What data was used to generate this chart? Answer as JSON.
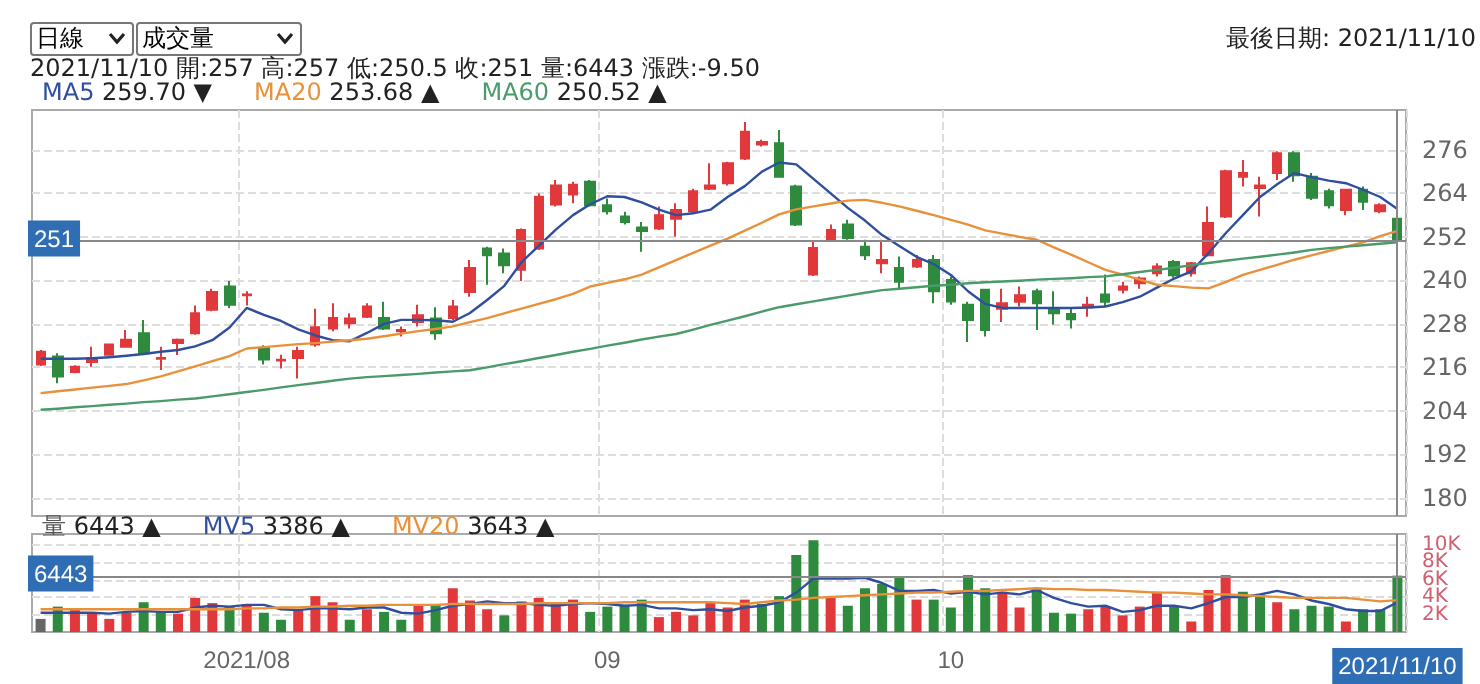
{
  "chart_data": [
    {
      "type": "candlestick",
      "annotations": [
        "日線",
        "成交量",
        "最後日期: 2021/11/10",
        "2021/11/10 開:257 高:257 低:250.5 收:251 量:6443 漲跌:-9.50"
      ],
      "categories": [
        null,
        null,
        null,
        null,
        null,
        null,
        null,
        null,
        null,
        null,
        null,
        null,
        "2021/08",
        null,
        null,
        null,
        null,
        null,
        null,
        null,
        null,
        null,
        null,
        null,
        null,
        null,
        null,
        null,
        null,
        null,
        null,
        null,
        null,
        "09",
        null,
        null,
        null,
        null,
        null,
        null,
        null,
        null,
        null,
        null,
        null,
        null,
        null,
        null,
        null,
        null,
        null,
        null,
        null,
        "10",
        null,
        null,
        null,
        null,
        null,
        null,
        null,
        null,
        null,
        null,
        null,
        null,
        null,
        null,
        null,
        null,
        null,
        null,
        null,
        null,
        null,
        null,
        null,
        null,
        null,
        "2021/11/10"
      ],
      "ohlc": [
        [
          216.8,
          220.8,
          216.4,
          220.3
        ],
        [
          219.0,
          219.9,
          211.6,
          213.5
        ],
        [
          214.7,
          216.6,
          214.4,
          216.2
        ],
        [
          217.5,
          221.7,
          216.2,
          218.6
        ],
        [
          219.5,
          222.6,
          219.4,
          222.3
        ],
        [
          221.7,
          226.3,
          221.6,
          223.6
        ],
        [
          225.4,
          229.1,
          219.4,
          219.9
        ],
        [
          218.4,
          221.7,
          215.3,
          218.6
        ],
        [
          222.7,
          224.0,
          219.4,
          223.6
        ],
        [
          225.4,
          233.1,
          225.0,
          230.9
        ],
        [
          231.9,
          237.7,
          231.5,
          236.8
        ],
        [
          238.3,
          239.8,
          232.4,
          233.3
        ],
        [
          235.9,
          237.0,
          233.1,
          236.1
        ],
        [
          221.4,
          222.1,
          216.8,
          218.2
        ],
        [
          217.9,
          219.5,
          215.7,
          218.1
        ],
        [
          218.6,
          221.7,
          212.9,
          220.5
        ],
        [
          222.3,
          232.2,
          221.7,
          227.1
        ],
        [
          226.7,
          233.7,
          226.0,
          229.6
        ],
        [
          228.2,
          230.9,
          226.7,
          229.5
        ],
        [
          230.0,
          233.7,
          229.6,
          232.8
        ],
        [
          229.6,
          234.1,
          226.3,
          226.7
        ],
        [
          226.0,
          227.3,
          224.5,
          226.3
        ],
        [
          228.5,
          233.3,
          227.3,
          230.4
        ],
        [
          229.5,
          232.6,
          223.6,
          225.4
        ],
        [
          229.6,
          234.6,
          229.1,
          232.8
        ],
        [
          236.8,
          245.6,
          235.5,
          243.4
        ],
        [
          248.8,
          249.3,
          238.8,
          246.9
        ],
        [
          247.4,
          248.8,
          242.0,
          244.2
        ],
        [
          242.9,
          254.3,
          239.8,
          253.9
        ],
        [
          248.8,
          264.0,
          248.4,
          263.1
        ],
        [
          260.9,
          267.7,
          260.4,
          266.2
        ],
        [
          263.7,
          267.2,
          261.3,
          266.4
        ],
        [
          267.2,
          267.7,
          260.4,
          260.7
        ],
        [
          260.7,
          262.6,
          258.2,
          259.1
        ],
        [
          257.6,
          258.9,
          255.4,
          256.1
        ],
        [
          254.6,
          256.1,
          247.9,
          253.6
        ],
        [
          254.3,
          260.4,
          253.9,
          258.0
        ],
        [
          257.0,
          261.3,
          252.1,
          259.4
        ],
        [
          259.1,
          265.3,
          258.5,
          264.6
        ],
        [
          265.3,
          272.3,
          264.9,
          266.2
        ],
        [
          266.8,
          272.7,
          266.2,
          272.3
        ],
        [
          273.6,
          283.7,
          273.2,
          281.0
        ],
        [
          277.5,
          278.8,
          276.9,
          278.2
        ],
        [
          277.8,
          281.5,
          268.3,
          268.6
        ],
        [
          265.9,
          266.4,
          255.0,
          255.4
        ],
        [
          241.6,
          250.6,
          241.2,
          248.9
        ],
        [
          251.2,
          255.4,
          250.8,
          253.9
        ],
        [
          255.4,
          256.7,
          251.2,
          251.7
        ],
        [
          249.3,
          251.2,
          245.6,
          246.9
        ],
        [
          244.7,
          251.2,
          242.0,
          245.6
        ],
        [
          243.4,
          246.6,
          237.4,
          239.6
        ],
        [
          243.8,
          247.0,
          243.4,
          245.6
        ],
        [
          245.6,
          247.0,
          233.7,
          237.0
        ],
        [
          240.1,
          241.1,
          233.3,
          234.2
        ],
        [
          233.3,
          234.1,
          223.0,
          229.1
        ],
        [
          237.4,
          237.7,
          224.5,
          226.3
        ],
        [
          232.2,
          237.7,
          228.5,
          233.7
        ],
        [
          234.1,
          238.3,
          232.8,
          235.9
        ],
        [
          237.0,
          237.7,
          226.3,
          233.7
        ],
        [
          232.4,
          237.0,
          227.8,
          230.9
        ],
        [
          230.7,
          232.2,
          226.7,
          229.3
        ],
        [
          232.6,
          235.5,
          230.0,
          233.3
        ],
        [
          236.1,
          241.6,
          232.8,
          234.1
        ],
        [
          237.4,
          239.6,
          236.4,
          238.3
        ],
        [
          239.2,
          241.1,
          237.7,
          240.5
        ],
        [
          242.0,
          244.7,
          241.1,
          243.8
        ],
        [
          245.1,
          245.6,
          240.7,
          241.4
        ],
        [
          242.0,
          245.1,
          241.1,
          244.7
        ],
        [
          246.9,
          260.4,
          246.6,
          255.8
        ],
        [
          257.6,
          270.5,
          257.2,
          270.1
        ],
        [
          268.6,
          273.2,
          265.9,
          269.6
        ],
        [
          265.5,
          268.6,
          257.6,
          266.2
        ],
        [
          269.6,
          275.6,
          267.7,
          275.1
        ],
        [
          275.1,
          275.6,
          267.2,
          269.0
        ],
        [
          268.6,
          269.6,
          262.2,
          262.8
        ],
        [
          264.6,
          265.3,
          259.8,
          260.7
        ],
        [
          259.4,
          265.3,
          258.0,
          265.0
        ],
        [
          265.0,
          265.9,
          259.4,
          261.7
        ],
        [
          259.1,
          261.3,
          258.5,
          260.7
        ],
        [
          257,
          257,
          250.5,
          251
        ]
      ],
      "colors": [
        "#e0383b",
        "#2e8b3e",
        "#e0383b",
        "#e0383b",
        "#e0383b",
        "#e0383b",
        "#2e8b3e",
        "#e0383b",
        "#e0383b",
        "#e0383b",
        "#e0383b",
        "#2e8b3e",
        "#e0383b",
        "#2e8b3e",
        "#e0383b",
        "#e0383b",
        "#e0383b",
        "#e0383b",
        "#e0383b",
        "#e0383b",
        "#2e8b3e",
        "#e0383b",
        "#e0383b",
        "#2e8b3e",
        "#e0383b",
        "#e0383b",
        "#2e8b3e",
        "#2e8b3e",
        "#e0383b",
        "#e0383b",
        "#e0383b",
        "#e0383b",
        "#2e8b3e",
        "#2e8b3e",
        "#2e8b3e",
        "#2e8b3e",
        "#e0383b",
        "#e0383b",
        "#e0383b",
        "#e0383b",
        "#e0383b",
        "#e0383b",
        "#e0383b",
        "#2e8b3e",
        "#2e8b3e",
        "#e0383b",
        "#e0383b",
        "#2e8b3e",
        "#2e8b3e",
        "#e0383b",
        "#2e8b3e",
        "#e0383b",
        "#2e8b3e",
        "#2e8b3e",
        "#2e8b3e",
        "#2e8b3e",
        "#e0383b",
        "#e0383b",
        "#2e8b3e",
        "#2e8b3e",
        "#2e8b3e",
        "#e0383b",
        "#2e8b3e",
        "#e0383b",
        "#e0383b",
        "#e0383b",
        "#2e8b3e",
        "#e0383b",
        "#e0383b",
        "#e0383b",
        "#e0383b",
        "#e0383b",
        "#e0383b",
        "#2e8b3e",
        "#2e8b3e",
        "#2e8b3e",
        "#e0383b",
        "#2e8b3e",
        "#e0383b",
        "#2e8b3e"
      ],
      "series": [
        {
          "name": "MA5 259.70 ▼",
          "type": "line",
          "color": "#2f4f9e",
          "values": [
            218.4,
            218.4,
            218.4,
            218.5,
            218.8,
            219.2,
            219.7,
            220.3,
            220.8,
            221.8,
            223.5,
            227,
            232.4,
            230.5,
            228.8,
            226.5,
            224.8,
            223.5,
            223.2,
            225.5,
            228,
            229.1,
            229.1,
            229,
            228.6,
            231,
            234.6,
            238.5,
            245,
            249.5,
            254,
            258,
            261,
            263.2,
            263,
            261.5,
            259.5,
            258,
            258.5,
            259.5,
            263,
            266,
            270,
            272.5,
            272,
            268,
            264,
            260,
            256.5,
            252.5,
            249.5,
            246.5,
            244.5,
            241.5,
            237,
            233.5,
            232.4,
            232.4,
            232.4,
            232.4,
            232.4,
            232.5,
            232.8,
            234,
            235.5,
            238,
            240.5,
            242.5,
            247.5,
            253,
            258,
            263,
            266.5,
            269.6,
            268.5,
            267.5,
            266.8,
            265,
            263,
            259.7
          ]
        },
        {
          "name": "MA20 253.68 ▲",
          "type": "line",
          "color": "#e8913a",
          "values": [
            208.9,
            209.4,
            209.9,
            210.4,
            210.9,
            211.4,
            212.4,
            213.5,
            214.9,
            216.3,
            217.7,
            219.1,
            221.2,
            221.6,
            222,
            222.4,
            222.7,
            223.1,
            223.5,
            223.9,
            224.6,
            225.3,
            226,
            226.6,
            227.3,
            228.5,
            229.6,
            230.9,
            232.2,
            233.5,
            234.8,
            236.3,
            238.3,
            239.3,
            240.3,
            241.6,
            243.6,
            245.6,
            247.6,
            249.6,
            251.5,
            253.7,
            255.9,
            258.2,
            259.6,
            260.4,
            261.2,
            262,
            262.2,
            261.4,
            260.4,
            259.2,
            258,
            256.7,
            255.4,
            253.8,
            252.9,
            252,
            251.2,
            249.1,
            247.1,
            245,
            242.9,
            241.6,
            240.2,
            238.8,
            238.4,
            238,
            237.8,
            239.5,
            241.5,
            242.9,
            244.3,
            245.7,
            246.9,
            248.1,
            249.3,
            250.5,
            252.2,
            253.68
          ]
        },
        {
          "name": "MA60 250.52 ▲",
          "type": "line",
          "color": "#4a9a6a",
          "values": [
            204.3,
            204.6,
            205,
            205.3,
            205.7,
            206,
            206.4,
            206.7,
            207.1,
            207.4,
            208,
            208.6,
            209.2,
            209.8,
            210.5,
            211.1,
            211.7,
            212.3,
            212.9,
            213.3,
            213.6,
            213.9,
            214.2,
            214.6,
            214.9,
            215.2,
            216,
            216.9,
            217.7,
            218.6,
            219.4,
            220.3,
            221.1,
            222,
            222.8,
            223.7,
            224.5,
            225.2,
            226.4,
            227.7,
            228.9,
            230.1,
            231.4,
            232.6,
            233.4,
            234.2,
            235,
            235.8,
            236.6,
            237.3,
            237.7,
            238.1,
            238.5,
            238.8,
            239.2,
            239.5,
            239.7,
            239.9,
            240.2,
            240.4,
            240.6,
            240.9,
            241.1,
            241.7,
            242.3,
            242.9,
            243.5,
            244.2,
            244.8,
            245.4,
            246,
            246.5,
            247.1,
            247.7,
            248.4,
            248.9,
            249.3,
            249.7,
            250.1,
            250.52
          ]
        }
      ],
      "ylim": [
        175,
        287
      ],
      "yticks": [
        180,
        192,
        204,
        216,
        228,
        240,
        252,
        264,
        276
      ],
      "ref_lines": [
        {
          "axis": "y",
          "value": 251,
          "label": "251",
          "color": "#888888"
        },
        {
          "axis": "x",
          "value": "2021/11/10",
          "color": "#888888"
        }
      ],
      "grid": true,
      "legend": "top left",
      "marker": "none",
      "tick_labels": "y"
    },
    {
      "type": "bar",
      "categories": [
        null,
        null,
        null,
        null,
        null,
        null,
        null,
        null,
        null,
        null,
        null,
        null,
        "2021/08",
        null,
        null,
        null,
        null,
        null,
        null,
        null,
        null,
        null,
        null,
        null,
        null,
        null,
        null,
        null,
        null,
        null,
        null,
        null,
        null,
        "09",
        null,
        null,
        null,
        null,
        null,
        null,
        null,
        null,
        null,
        null,
        null,
        null,
        null,
        null,
        null,
        null,
        null,
        null,
        null,
        "10",
        null,
        null,
        null,
        null,
        null,
        null,
        null,
        null,
        null,
        null,
        null,
        null,
        null,
        null,
        null,
        null,
        null,
        null,
        null,
        null,
        null,
        null,
        null,
        null,
        null,
        "2021/11/10"
      ],
      "series": [
        {
          "name": "量 6443 ▲",
          "values": [
            1500,
            2900,
            2600,
            2100,
            1500,
            2200,
            3400,
            2300,
            2100,
            3900,
            3300,
            2900,
            3200,
            2200,
            1400,
            2600,
            4100,
            3400,
            1400,
            2600,
            2300,
            1400,
            3000,
            3200,
            5000,
            3600,
            2600,
            1900,
            3500,
            3900,
            3200,
            3700,
            2300,
            2900,
            3100,
            3700,
            1700,
            2300,
            1900,
            3400,
            2800,
            3700,
            3200,
            4100,
            8800,
            10500,
            3900,
            3000,
            5000,
            5500,
            6300,
            3700,
            3700,
            2800,
            6500,
            5000,
            4600,
            2800,
            5000,
            2200,
            2100,
            2600,
            2900,
            1900,
            2900,
            4600,
            2900,
            1200,
            4800,
            6500,
            4600,
            4300,
            3400,
            2600,
            3000,
            2900,
            1200,
            2600,
            2600,
            6443
          ],
          "colors": [
            "#666666",
            "#2e8b3e",
            "#e0383b",
            "#e0383b",
            "#e0383b",
            "#e0383b",
            "#2e8b3e",
            "#2e8b3e",
            "#e0383b",
            "#e0383b",
            "#e0383b",
            "#2e8b3e",
            "#e0383b",
            "#2e8b3e",
            "#2e8b3e",
            "#e0383b",
            "#e0383b",
            "#e0383b",
            "#2e8b3e",
            "#e0383b",
            "#2e8b3e",
            "#2e8b3e",
            "#e0383b",
            "#2e8b3e",
            "#e0383b",
            "#e0383b",
            "#e0383b",
            "#2e8b3e",
            "#e0383b",
            "#e0383b",
            "#e0383b",
            "#e0383b",
            "#2e8b3e",
            "#2e8b3e",
            "#2e8b3e",
            "#2e8b3e",
            "#e0383b",
            "#e0383b",
            "#e0383b",
            "#e0383b",
            "#e0383b",
            "#e0383b",
            "#2e8b3e",
            "#2e8b3e",
            "#2e8b3e",
            "#2e8b3e",
            "#e0383b",
            "#2e8b3e",
            "#2e8b3e",
            "#2e8b3e",
            "#2e8b3e",
            "#e0383b",
            "#2e8b3e",
            "#2e8b3e",
            "#2e8b3e",
            "#2e8b3e",
            "#e0383b",
            "#e0383b",
            "#2e8b3e",
            "#2e8b3e",
            "#2e8b3e",
            "#e0383b",
            "#e0383b",
            "#e0383b",
            "#e0383b",
            "#e0383b",
            "#2e8b3e",
            "#e0383b",
            "#e0383b",
            "#e0383b",
            "#2e8b3e",
            "#2e8b3e",
            "#e0383b",
            "#2e8b3e",
            "#2e8b3e",
            "#2e8b3e",
            "#e0383b",
            "#2e8b3e",
            "#2e8b3e",
            "#2e8b3e"
          ]
        },
        {
          "name": "MV5 3386 ▲",
          "type": "line",
          "color": "#2f4f9e",
          "values": [
            2200,
            2200,
            2200,
            2200,
            2100,
            2300,
            2400,
            2300,
            2300,
            2800,
            3000,
            2900,
            3100,
            3100,
            2600,
            2500,
            2700,
            2700,
            2600,
            2800,
            2800,
            2200,
            2100,
            2500,
            3000,
            3200,
            3500,
            3300,
            3300,
            3100,
            3000,
            3200,
            3300,
            3200,
            3000,
            3100,
            2700,
            2700,
            2500,
            2600,
            2400,
            2800,
            3000,
            3400,
            4500,
            6100,
            6100,
            6100,
            6200,
            5600,
            4700,
            4700,
            4800,
            4400,
            4600,
            4300,
            4500,
            4300,
            4800,
            3900,
            3300,
            2900,
            3000,
            2300,
            2500,
            3000,
            3000,
            2700,
            3300,
            4000,
            4000,
            4300,
            4700,
            4300,
            3600,
            3200,
            2600,
            2400,
            2400,
            3386
          ]
        },
        {
          "name": "MV20 3643 ▲",
          "type": "line",
          "color": "#e8913a",
          "values": [
            2600,
            2600,
            2600,
            2600,
            2600,
            2600,
            2600,
            2600,
            2600,
            2600,
            2600,
            2600,
            2700,
            2700,
            2800,
            2800,
            2900,
            2900,
            3000,
            3000,
            3100,
            3100,
            3100,
            3100,
            3200,
            3200,
            3200,
            3200,
            3200,
            3300,
            3300,
            3300,
            3300,
            3300,
            3400,
            3400,
            3400,
            3400,
            3400,
            3400,
            3300,
            3200,
            3400,
            3600,
            3700,
            3900,
            4000,
            4100,
            4200,
            4300,
            4400,
            4500,
            4500,
            4600,
            4700,
            4700,
            4800,
            4900,
            5000,
            4900,
            4900,
            4800,
            4800,
            4700,
            4600,
            4500,
            4500,
            4400,
            4300,
            4300,
            4200,
            4100,
            4000,
            3900,
            3900,
            3900,
            3900,
            3700,
            3500,
            3643
          ]
        }
      ],
      "ylim": [
        0,
        11200
      ],
      "yticks": [
        {
          "value": 2000,
          "label": "2K"
        },
        {
          "value": 4000,
          "label": "4K"
        },
        {
          "value": 6000,
          "label": "6K"
        },
        {
          "value": 8000,
          "label": "8K"
        },
        {
          "value": 10000,
          "label": "10K"
        }
      ],
      "ref_lines": [
        {
          "axis": "y",
          "value": 6443,
          "label": "6443",
          "color": "#888888"
        },
        {
          "axis": "x",
          "value": "2021/11/10",
          "color": "#888888"
        }
      ],
      "grid": true,
      "legend": "top left",
      "marker": "none"
    }
  ]
}
